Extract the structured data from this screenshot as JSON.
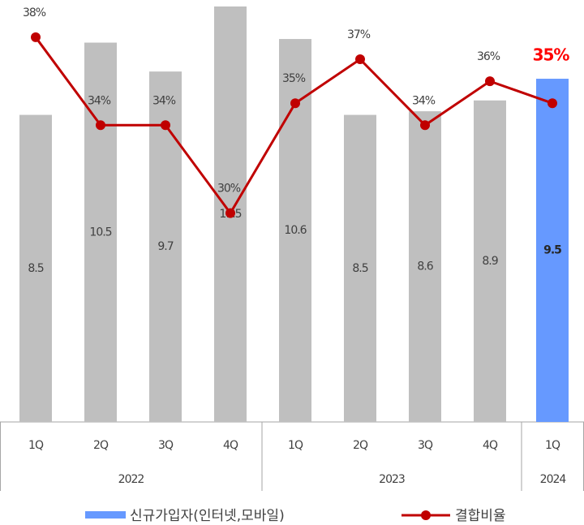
{
  "chart_data": {
    "type": "bar-line",
    "groups": [
      {
        "label": "2022",
        "quarters": [
          "1Q",
          "2Q",
          "3Q",
          "4Q"
        ]
      },
      {
        "label": "2023",
        "quarters": [
          "1Q",
          "2Q",
          "3Q",
          "4Q"
        ]
      },
      {
        "label": "2024",
        "quarters": [
          "1Q"
        ]
      }
    ],
    "series": [
      {
        "name": "신규가입자(인터넷,모바일)",
        "type": "bar",
        "color": "#6699ff",
        "colors": [
          "#bfbfbf",
          "#bfbfbf",
          "#bfbfbf",
          "#bfbfbf",
          "#bfbfbf",
          "#bfbfbf",
          "#bfbfbf",
          "#bfbfbf",
          "#6699ff"
        ],
        "values": [
          8.5,
          10.5,
          9.7,
          11.5,
          10.6,
          8.5,
          8.6,
          8.9,
          9.5
        ]
      },
      {
        "name": "결합비율",
        "type": "line",
        "axis": "y2",
        "color": "#c00000",
        "values": [
          38,
          34,
          34,
          30,
          35,
          37,
          34,
          36,
          35
        ],
        "value_labels": [
          "38%",
          "34%",
          "34%",
          "30%",
          "35%",
          "37%",
          "34%",
          "36%",
          "35%"
        ]
      }
    ],
    "ylim": [
      0,
      11.5
    ],
    "y2lim": [
      20.5,
      39.4
    ]
  }
}
